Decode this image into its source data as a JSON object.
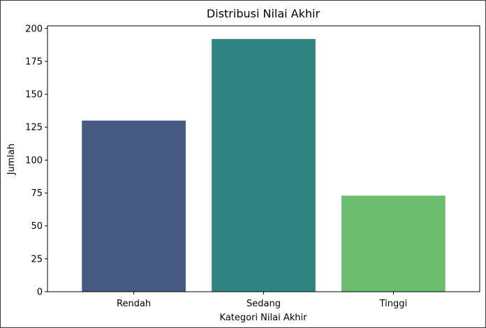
{
  "chart_data": {
    "type": "bar",
    "title": "Distribusi Nilai Akhir",
    "xlabel": "Kategori Nilai Akhir",
    "ylabel": "Jumlah",
    "categories": [
      "Rendah",
      "Sedang",
      "Tinggi"
    ],
    "values": [
      130,
      192,
      73
    ],
    "colors": [
      "#465a84",
      "#2e847e",
      "#6bbd6d"
    ],
    "ylim": [
      0,
      202
    ],
    "yticks": [
      0,
      25,
      50,
      75,
      100,
      125,
      150,
      175,
      200
    ],
    "grid": false,
    "legend": false
  }
}
